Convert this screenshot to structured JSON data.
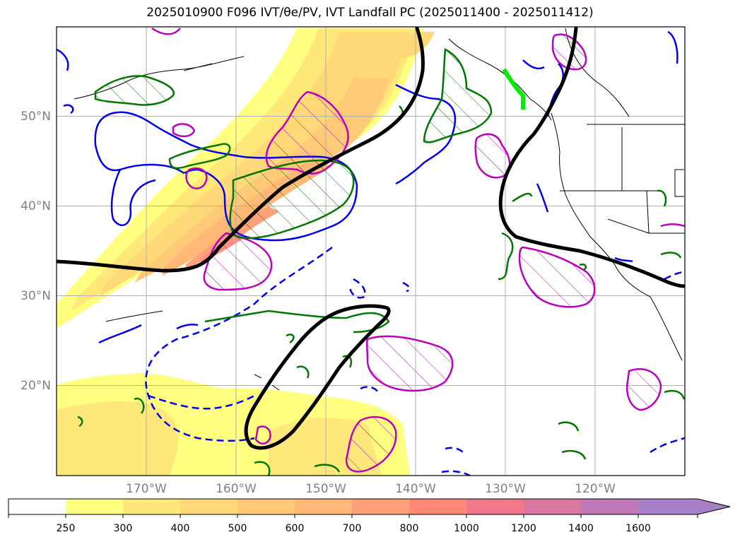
{
  "title": "2025010900 F096 IVT/θe/PV, IVT Landfall PC (2025011400 - 2025011412)",
  "map": {
    "lon_range": [
      180,
      110
    ],
    "lat_range": [
      10,
      60
    ],
    "lat_ticks": [
      "20°N",
      "30°N",
      "40°N",
      "50°N"
    ],
    "lon_ticks": [
      "170°W",
      "160°W",
      "150°W",
      "140°W",
      "130°W",
      "120°W"
    ]
  },
  "colorbar": {
    "ticks": [
      "250",
      "300",
      "400",
      "500",
      "600",
      "700",
      "800",
      "1000",
      "1200",
      "1400",
      "1600"
    ],
    "colors": [
      "#ffff80",
      "#ffe87a",
      "#ffd878",
      "#ffca78",
      "#ffb878",
      "#ffa078",
      "#ff8878",
      "#f07888",
      "#d878a0",
      "#c078b8",
      "#a880c8"
    ],
    "extend": "max"
  },
  "legend_colors": {
    "thetae_warm": "#0000ee",
    "thetae_cold": "#0000ee",
    "pv_pos": "#bb00bb",
    "pv_neg": "#007700",
    "ivt_pc": "#000000",
    "landfall": "#00ee00"
  }
}
